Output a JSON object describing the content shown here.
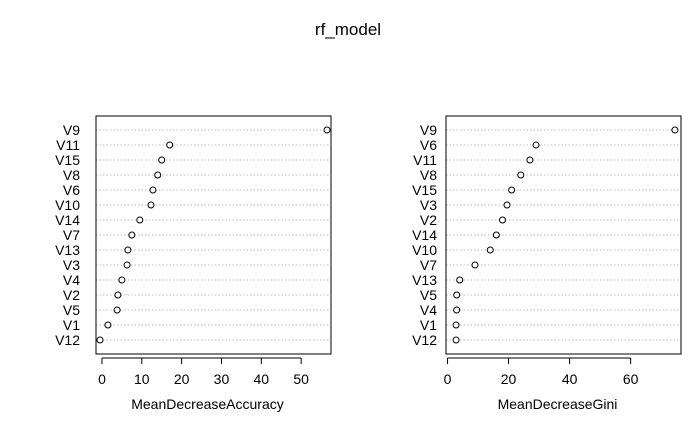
{
  "title": "rf_model",
  "chart_data": [
    {
      "type": "scatter",
      "xlabel": "MeanDecreaseAccuracy",
      "xlim": [
        -1.5,
        57.5
      ],
      "xticks": [
        0,
        10,
        20,
        30,
        40,
        50
      ],
      "grid": "horizontal dotted",
      "labels": [
        "V9",
        "V11",
        "V15",
        "V8",
        "V6",
        "V10",
        "V14",
        "V7",
        "V13",
        "V3",
        "V4",
        "V2",
        "V5",
        "V1",
        "V12"
      ],
      "values": [
        56.5,
        17.0,
        15.0,
        14.0,
        12.8,
        12.3,
        9.5,
        7.5,
        6.5,
        6.3,
        5.0,
        4.0,
        3.8,
        1.5,
        -0.5
      ]
    },
    {
      "type": "scatter",
      "xlabel": "MeanDecreaseGini",
      "xlim": [
        -0.5,
        76.5
      ],
      "xticks": [
        0,
        20,
        40,
        60
      ],
      "grid": "horizontal dotted",
      "labels": [
        "V9",
        "V6",
        "V11",
        "V8",
        "V15",
        "V3",
        "V2",
        "V14",
        "V10",
        "V7",
        "V13",
        "V5",
        "V4",
        "V1",
        "V12"
      ],
      "values": [
        74.5,
        29.0,
        27.0,
        24.0,
        21.0,
        19.5,
        18.0,
        16.0,
        14.0,
        9.0,
        4.0,
        3.0,
        3.0,
        2.8,
        2.8
      ]
    }
  ]
}
